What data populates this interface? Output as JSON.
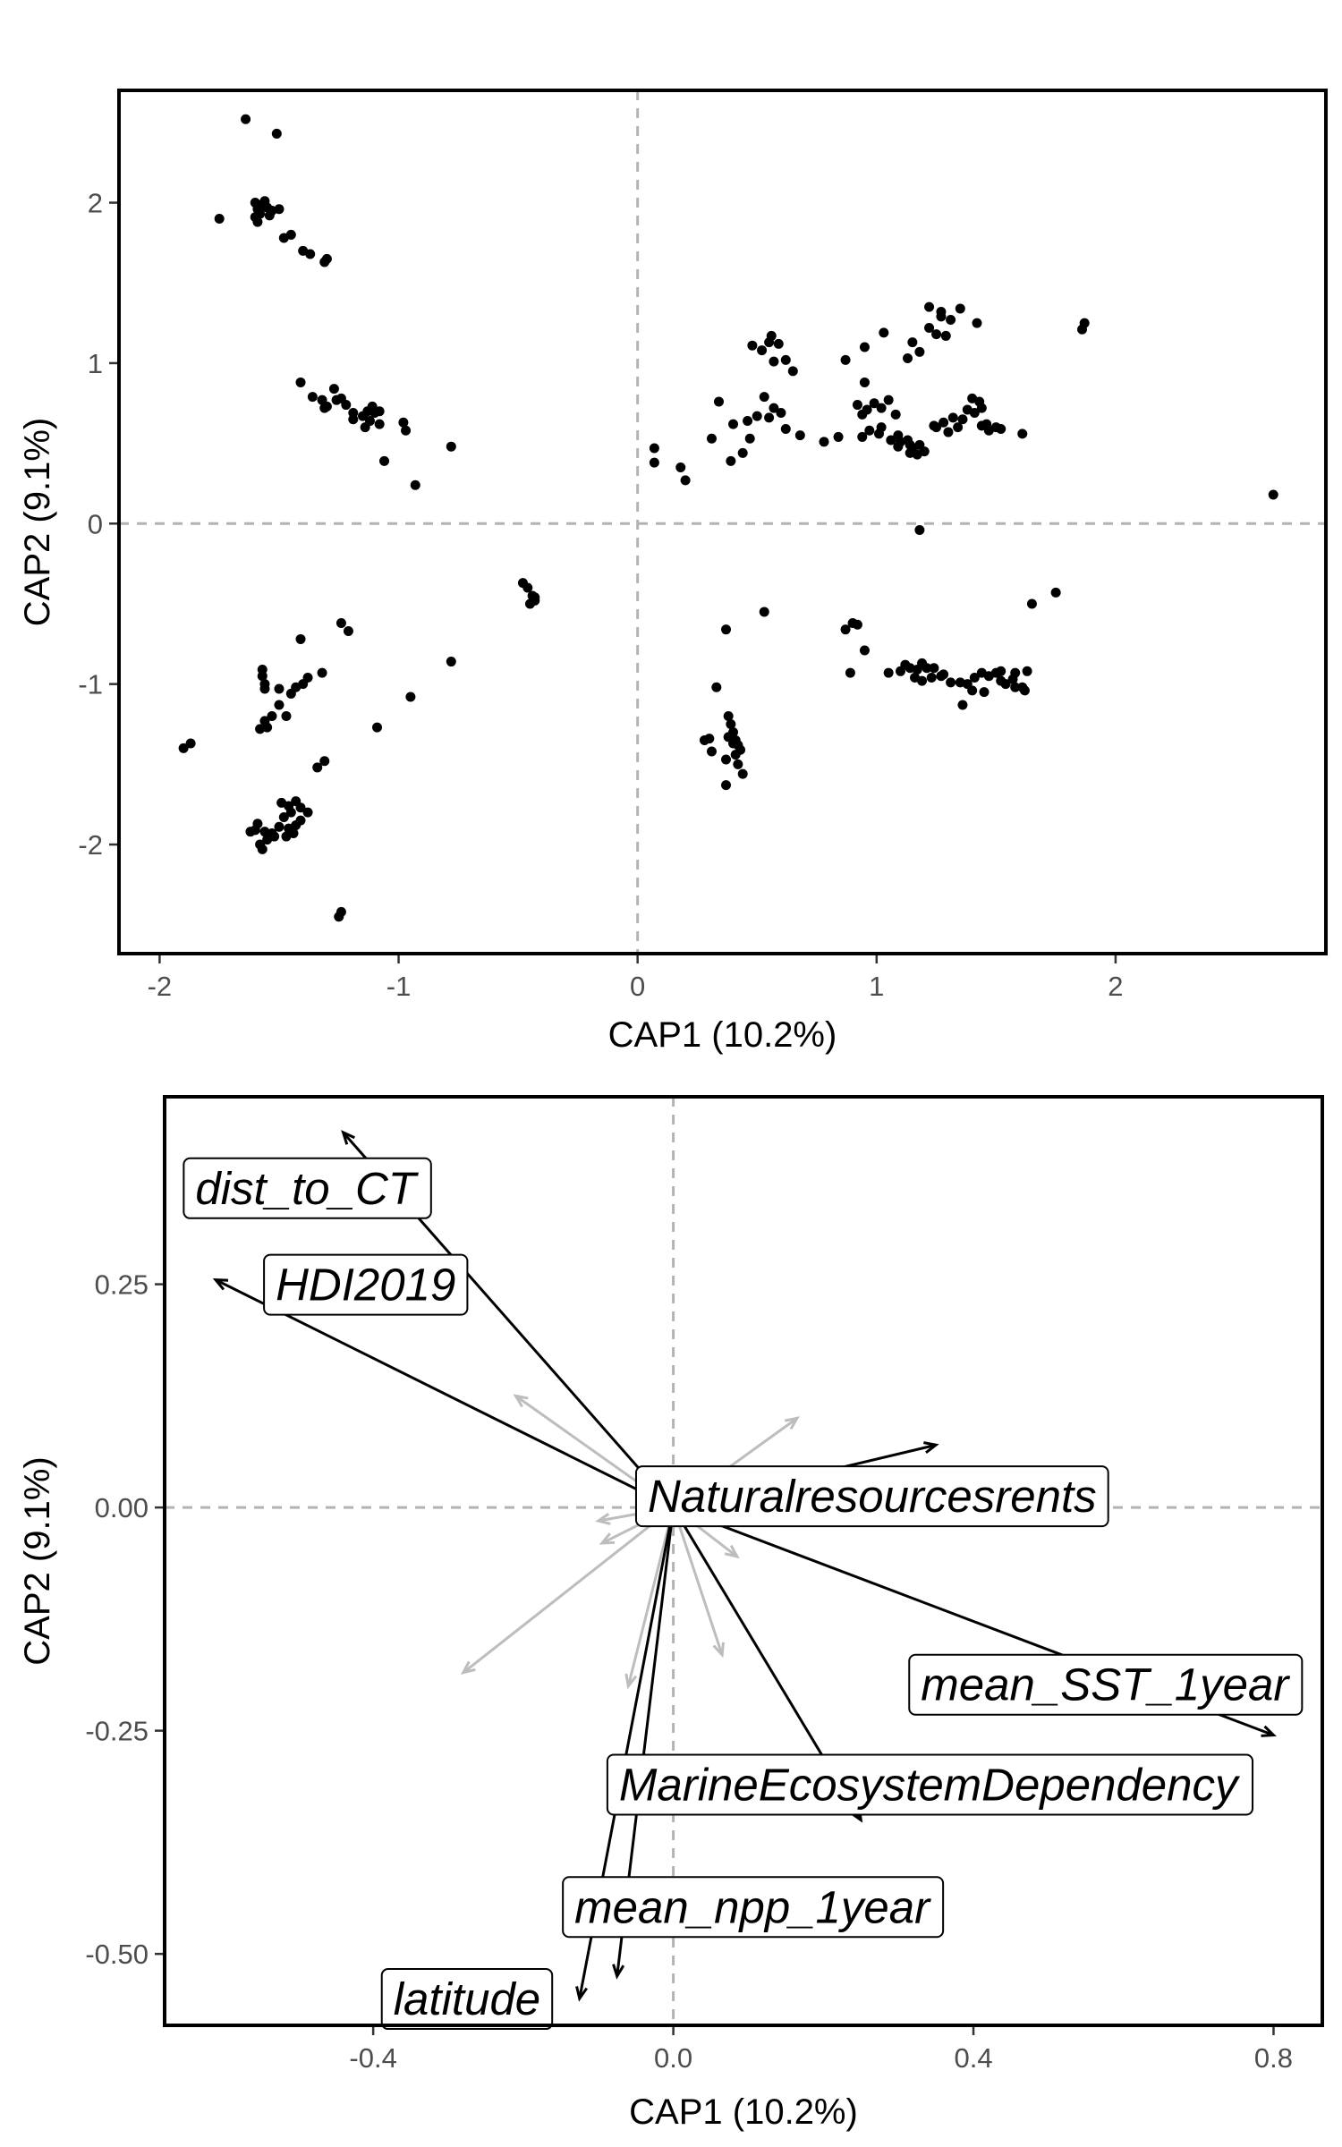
{
  "chart_data": [
    {
      "type": "scatter",
      "xlabel": "CAP1 (10.2%)",
      "ylabel": "CAP2 (9.1%)",
      "xlim": [
        -2.17,
        2.88
      ],
      "ylim": [
        -2.68,
        2.7
      ],
      "x_ticks": [
        {
          "v": -2,
          "label": "-2"
        },
        {
          "v": -1,
          "label": "-1"
        },
        {
          "v": 0,
          "label": "0"
        },
        {
          "v": 1,
          "label": "1"
        },
        {
          "v": 2,
          "label": "2"
        }
      ],
      "y_ticks": [
        {
          "v": -2,
          "label": "-2"
        },
        {
          "v": -1,
          "label": "-1"
        },
        {
          "v": 0,
          "label": "0"
        },
        {
          "v": 1,
          "label": "1"
        },
        {
          "v": 2,
          "label": "2"
        }
      ],
      "reference_lines": {
        "x": 0,
        "y": 0,
        "style": "dashed",
        "color": "#b3b3b3"
      },
      "point_color": "#000000",
      "points": [
        [
          -1.64,
          2.52
        ],
        [
          -1.51,
          2.43
        ],
        [
          -1.6,
          2.0
        ],
        [
          -1.58,
          1.98
        ],
        [
          -1.56,
          2.01
        ],
        [
          -1.55,
          1.97
        ],
        [
          -1.59,
          1.96
        ],
        [
          -1.57,
          1.99
        ],
        [
          -1.53,
          1.95
        ],
        [
          -1.54,
          1.92
        ],
        [
          -1.58,
          1.93
        ],
        [
          -1.6,
          1.91
        ],
        [
          -1.5,
          1.96
        ],
        [
          -1.59,
          1.88
        ],
        [
          -1.75,
          1.9
        ],
        [
          -1.48,
          1.78
        ],
        [
          -1.45,
          1.8
        ],
        [
          -1.4,
          1.7
        ],
        [
          -1.37,
          1.68
        ],
        [
          -1.31,
          1.63
        ],
        [
          -1.3,
          1.65
        ],
        [
          -1.41,
          0.88
        ],
        [
          -1.36,
          0.79
        ],
        [
          -1.32,
          0.77
        ],
        [
          -1.27,
          0.84
        ],
        [
          -1.24,
          0.78
        ],
        [
          -1.26,
          0.77
        ],
        [
          -1.3,
          0.73
        ],
        [
          -1.22,
          0.74
        ],
        [
          -1.19,
          0.69
        ],
        [
          -1.15,
          0.67
        ],
        [
          -1.13,
          0.7
        ],
        [
          -1.11,
          0.73
        ],
        [
          -1.1,
          0.69
        ],
        [
          -1.08,
          0.7
        ],
        [
          -1.12,
          0.64
        ],
        [
          -1.08,
          0.62
        ],
        [
          -1.14,
          0.6
        ],
        [
          -1.19,
          0.65
        ],
        [
          -1.31,
          0.72
        ],
        [
          -0.98,
          0.63
        ],
        [
          -0.97,
          0.58
        ],
        [
          -1.06,
          0.39
        ],
        [
          -0.93,
          0.24
        ],
        [
          -0.78,
          0.48
        ],
        [
          -0.48,
          -0.37
        ],
        [
          -0.46,
          -0.4
        ],
        [
          -0.44,
          -0.45
        ],
        [
          -0.43,
          -0.48
        ],
        [
          -0.45,
          -0.5
        ],
        [
          -0.43,
          -0.46
        ],
        [
          -1.41,
          -0.72
        ],
        [
          -1.57,
          -0.91
        ],
        [
          -1.57,
          -0.95
        ],
        [
          -1.56,
          -1.0
        ],
        [
          -1.56,
          -1.03
        ],
        [
          -1.5,
          -1.03
        ],
        [
          -1.45,
          -1.06
        ],
        [
          -1.43,
          -1.02
        ],
        [
          -1.4,
          -1.0
        ],
        [
          -1.38,
          -0.96
        ],
        [
          -1.32,
          -0.93
        ],
        [
          -1.24,
          -0.62
        ],
        [
          -1.21,
          -0.67
        ],
        [
          -1.5,
          -1.13
        ],
        [
          -1.47,
          -1.2
        ],
        [
          -1.53,
          -1.2
        ],
        [
          -1.56,
          -1.23
        ],
        [
          -1.58,
          -1.28
        ],
        [
          -1.55,
          -1.27
        ],
        [
          -1.09,
          -1.27
        ],
        [
          -0.95,
          -1.08
        ],
        [
          -0.78,
          -0.86
        ],
        [
          -1.9,
          -1.4
        ],
        [
          -1.87,
          -1.37
        ],
        [
          -1.34,
          -1.52
        ],
        [
          -1.31,
          -1.48
        ],
        [
          -1.49,
          -1.74
        ],
        [
          -1.46,
          -1.76
        ],
        [
          -1.43,
          -1.73
        ],
        [
          -1.41,
          -1.77
        ],
        [
          -1.45,
          -1.8
        ],
        [
          -1.48,
          -1.83
        ],
        [
          -1.41,
          -1.85
        ],
        [
          -1.38,
          -1.8
        ],
        [
          -1.43,
          -1.88
        ],
        [
          -1.46,
          -1.9
        ],
        [
          -1.5,
          -1.89
        ],
        [
          -1.53,
          -1.93
        ],
        [
          -1.56,
          -1.92
        ],
        [
          -1.59,
          -1.87
        ],
        [
          -1.6,
          -1.91
        ],
        [
          -1.52,
          -1.95
        ],
        [
          -1.47,
          -1.95
        ],
        [
          -1.44,
          -1.93
        ],
        [
          -1.58,
          -2.0
        ],
        [
          -1.57,
          -2.03
        ],
        [
          -1.55,
          -1.97
        ],
        [
          -1.62,
          -1.92
        ],
        [
          -1.24,
          -2.42
        ],
        [
          -1.25,
          -2.45
        ],
        [
          0.07,
          0.47
        ],
        [
          0.07,
          0.38
        ],
        [
          0.18,
          0.35
        ],
        [
          0.2,
          0.27
        ],
        [
          0.31,
          0.53
        ],
        [
          0.34,
          0.76
        ],
        [
          0.4,
          0.62
        ],
        [
          0.39,
          0.39
        ],
        [
          0.44,
          0.44
        ],
        [
          0.47,
          0.53
        ],
        [
          0.46,
          0.64
        ],
        [
          0.5,
          0.67
        ],
        [
          0.55,
          0.66
        ],
        [
          0.57,
          0.72
        ],
        [
          0.6,
          0.69
        ],
        [
          0.62,
          0.59
        ],
        [
          0.68,
          0.55
        ],
        [
          0.78,
          0.51
        ],
        [
          0.48,
          1.11
        ],
        [
          0.52,
          1.08
        ],
        [
          0.55,
          1.13
        ],
        [
          0.56,
          1.17
        ],
        [
          0.59,
          1.12
        ],
        [
          0.62,
          1.02
        ],
        [
          0.57,
          1.01
        ],
        [
          0.53,
          0.79
        ],
        [
          0.65,
          0.95
        ],
        [
          0.87,
          1.02
        ],
        [
          0.95,
          1.1
        ],
        [
          0.95,
          0.88
        ],
        [
          1.03,
          1.19
        ],
        [
          1.13,
          1.03
        ],
        [
          0.92,
          0.74
        ],
        [
          0.94,
          0.68
        ],
        [
          0.96,
          0.71
        ],
        [
          0.99,
          0.75
        ],
        [
          1.02,
          0.72
        ],
        [
          1.05,
          0.77
        ],
        [
          1.08,
          0.68
        ],
        [
          1.02,
          0.6
        ],
        [
          1.01,
          0.56
        ],
        [
          0.97,
          0.58
        ],
        [
          0.94,
          0.54
        ],
        [
          0.84,
          0.54
        ],
        [
          1.06,
          0.52
        ],
        [
          1.09,
          0.48
        ],
        [
          1.13,
          0.52
        ],
        [
          1.15,
          0.47
        ],
        [
          1.18,
          0.49
        ],
        [
          1.2,
          0.45
        ],
        [
          1.17,
          0.43
        ],
        [
          1.14,
          0.44
        ],
        [
          1.1,
          0.51
        ],
        [
          1.24,
          0.61
        ],
        [
          1.28,
          0.63
        ],
        [
          1.32,
          0.66
        ],
        [
          1.36,
          0.65
        ],
        [
          1.38,
          0.71
        ],
        [
          1.41,
          0.69
        ],
        [
          1.44,
          0.72
        ],
        [
          1.46,
          0.62
        ],
        [
          1.5,
          0.6
        ],
        [
          1.52,
          0.59
        ],
        [
          1.47,
          0.58
        ],
        [
          1.44,
          0.61
        ],
        [
          1.4,
          0.78
        ],
        [
          1.43,
          0.76
        ],
        [
          1.34,
          0.6
        ],
        [
          1.3,
          0.57
        ],
        [
          1.25,
          0.6
        ],
        [
          1.61,
          0.56
        ],
        [
          1.14,
          0.49
        ],
        [
          1.09,
          0.55
        ],
        [
          1.15,
          1.13
        ],
        [
          1.18,
          1.07
        ],
        [
          1.22,
          1.22
        ],
        [
          1.25,
          1.18
        ],
        [
          1.27,
          1.29
        ],
        [
          1.31,
          1.27
        ],
        [
          1.29,
          1.17
        ],
        [
          1.22,
          1.35
        ],
        [
          1.27,
          1.32
        ],
        [
          1.35,
          1.34
        ],
        [
          1.42,
          1.25
        ],
        [
          1.87,
          1.25
        ],
        [
          1.86,
          1.21
        ],
        [
          2.66,
          0.18
        ],
        [
          1.18,
          -0.04
        ],
        [
          0.53,
          -0.55
        ],
        [
          0.37,
          -0.66
        ],
        [
          0.33,
          -1.02
        ],
        [
          0.38,
          -1.2
        ],
        [
          0.39,
          -1.25
        ],
        [
          0.4,
          -1.3
        ],
        [
          0.41,
          -1.35
        ],
        [
          0.42,
          -1.38
        ],
        [
          0.43,
          -1.41
        ],
        [
          0.4,
          -1.37
        ],
        [
          0.38,
          -1.33
        ],
        [
          0.28,
          -1.35
        ],
        [
          0.3,
          -1.34
        ],
        [
          0.31,
          -1.42
        ],
        [
          0.37,
          -1.47
        ],
        [
          0.42,
          -1.5
        ],
        [
          0.44,
          -1.56
        ],
        [
          0.37,
          -1.63
        ],
        [
          0.41,
          -1.44
        ],
        [
          0.87,
          -0.66
        ],
        [
          0.9,
          -0.62
        ],
        [
          0.92,
          -0.63
        ],
        [
          0.95,
          -0.79
        ],
        [
          0.89,
          -0.93
        ],
        [
          1.05,
          -0.93
        ],
        [
          1.12,
          -0.88
        ],
        [
          1.1,
          -0.92
        ],
        [
          1.14,
          -0.9
        ],
        [
          1.17,
          -0.91
        ],
        [
          1.19,
          -0.87
        ],
        [
          1.21,
          -0.9
        ],
        [
          1.24,
          -0.9
        ],
        [
          1.16,
          -0.96
        ],
        [
          1.19,
          -0.98
        ],
        [
          1.23,
          -0.96
        ],
        [
          1.27,
          -0.95
        ],
        [
          1.31,
          -0.99
        ],
        [
          1.35,
          -0.99
        ],
        [
          1.38,
          -1.0
        ],
        [
          1.4,
          -1.04
        ],
        [
          1.41,
          -0.96
        ],
        [
          1.44,
          -0.93
        ],
        [
          1.47,
          -0.95
        ],
        [
          1.5,
          -0.93
        ],
        [
          1.52,
          -0.98
        ],
        [
          1.54,
          -1.0
        ],
        [
          1.57,
          -0.97
        ],
        [
          1.58,
          -1.02
        ],
        [
          1.61,
          -1.02
        ],
        [
          1.63,
          -0.92
        ],
        [
          1.58,
          -0.93
        ],
        [
          1.52,
          -0.92
        ],
        [
          1.45,
          -1.05
        ],
        [
          1.36,
          -1.13
        ],
        [
          1.28,
          -0.94
        ],
        [
          1.62,
          -1.04
        ],
        [
          1.65,
          -0.5
        ],
        [
          1.75,
          -0.43
        ]
      ]
    },
    {
      "type": "biplot-vectors",
      "xlabel": "CAP1 (10.2%)",
      "ylabel": "CAP2 (9.1%)",
      "xlim": [
        -0.678,
        0.865
      ],
      "ylim": [
        -0.58,
        0.46
      ],
      "x_ticks": [
        {
          "v": -0.4,
          "label": "-0.4"
        },
        {
          "v": 0.0,
          "label": "0.0"
        },
        {
          "v": 0.4,
          "label": "0.4"
        },
        {
          "v": 0.8,
          "label": "0.8"
        }
      ],
      "y_ticks": [
        {
          "v": -0.5,
          "label": "-0.50"
        },
        {
          "v": -0.25,
          "label": "-0.25"
        },
        {
          "v": 0.0,
          "label": "0.00"
        },
        {
          "v": 0.25,
          "label": "0.25"
        }
      ],
      "reference_lines": {
        "x": 0,
        "y": 0,
        "style": "dashed",
        "color": "#b3b3b3"
      },
      "significant_color": "#000000",
      "other_color": "#bdbdbd",
      "vectors": [
        {
          "name": "dist_to_CT",
          "x": -0.44,
          "y": 0.42
        },
        {
          "name": "HDI2019",
          "x": -0.61,
          "y": 0.255
        },
        {
          "name": "Naturalresourcesrents",
          "x": 0.35,
          "y": 0.07
        },
        {
          "name": "mean_SST_1year",
          "x": 0.8,
          "y": -0.255
        },
        {
          "name": "MarineEcosystemDependency",
          "x": 0.25,
          "y": -0.35
        },
        {
          "name": "mean_npp_1year",
          "x": -0.075,
          "y": -0.525
        },
        {
          "name": "latitude",
          "x": -0.125,
          "y": -0.55
        }
      ],
      "other_vectors": [
        [
          -0.21,
          0.125
        ],
        [
          0.165,
          0.1
        ],
        [
          -0.28,
          -0.185
        ],
        [
          -0.1,
          -0.015
        ],
        [
          -0.095,
          -0.04
        ],
        [
          0.085,
          -0.055
        ],
        [
          0.065,
          -0.165
        ],
        [
          -0.06,
          -0.2
        ]
      ],
      "labels": [
        {
          "text": "dist_to_CT",
          "x": -0.49,
          "y": 0.358
        },
        {
          "text": "HDI2019",
          "x": -0.41,
          "y": 0.25
        },
        {
          "text": "Naturalresourcesrents",
          "x": 0.265,
          "y": 0.013
        },
        {
          "text": "mean_SST_1year",
          "x": 0.575,
          "y": -0.198
        },
        {
          "text": "MarineEcosystemDependency",
          "x": 0.34,
          "y": -0.31
        },
        {
          "text": "mean_npp_1year",
          "x": 0.105,
          "y": -0.447
        },
        {
          "text": "latitude",
          "x": -0.275,
          "y": -0.55
        }
      ]
    }
  ]
}
